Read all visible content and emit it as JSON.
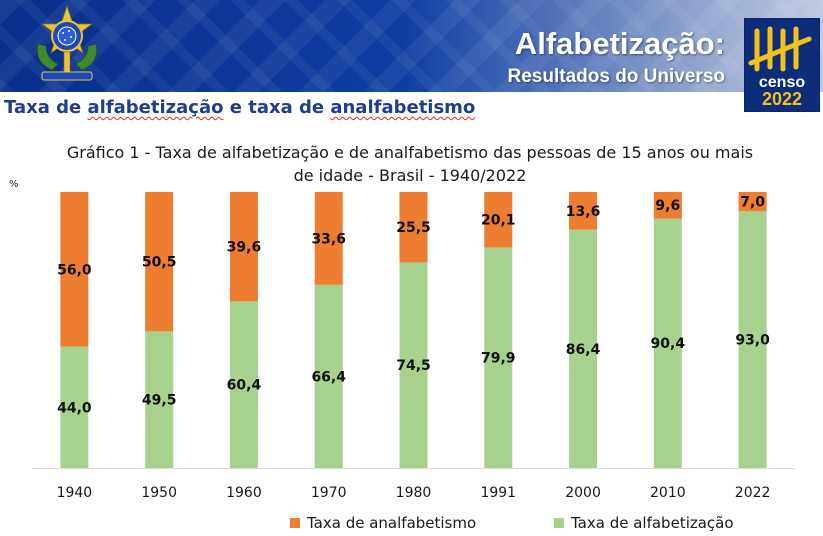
{
  "header": {
    "title": "Alfabetização:",
    "subtitle": "Resultados do Universo",
    "logo_text_line1": "censo",
    "logo_text_line2": "2022",
    "colors": {
      "band": "#0d3fa3",
      "logo_bg": "#0d2d7a",
      "logo_accent": "#f2c21b"
    }
  },
  "section": {
    "title_parts": [
      "Taxa de ",
      "alfabetização",
      " e taxa de ",
      "analfabetismo"
    ]
  },
  "chart_data": {
    "type": "bar",
    "stacked": true,
    "normalized_percent": true,
    "title_line1": "Gráfico 1 - Taxa de alfabetização e de analfabetismo das pessoas de 15 anos ou mais",
    "title_line2": "de idade - Brasil - 1940/2022",
    "ylabel": "%",
    "xlabel": "",
    "categories": [
      "1940",
      "1950",
      "1960",
      "1970",
      "1980",
      "1991",
      "2000",
      "2010",
      "2022"
    ],
    "series": [
      {
        "name": "Taxa de alfabetização",
        "color": "#a9d18e",
        "values": [
          44.0,
          49.5,
          60.4,
          66.4,
          74.5,
          79.9,
          86.4,
          90.4,
          93.0
        ],
        "labels": [
          "44,0",
          "49,5",
          "60,4",
          "66,4",
          "74,5",
          "79,9",
          "86,4",
          "90,4",
          "93,0"
        ]
      },
      {
        "name": "Taxa de analfabetismo",
        "color": "#ed7d31",
        "values": [
          56.0,
          50.5,
          39.6,
          33.6,
          25.5,
          20.1,
          13.6,
          9.6,
          7.0
        ],
        "labels": [
          "56,0",
          "50,5",
          "39,6",
          "33,6",
          "25,5",
          "20,1",
          "13,6",
          "9,6",
          "7,0"
        ]
      }
    ],
    "ylim": [
      0,
      100
    ],
    "grid": false,
    "legend_position": "bottom"
  }
}
